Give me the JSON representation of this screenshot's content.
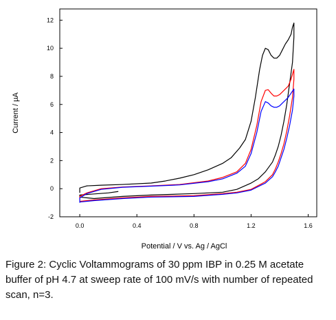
{
  "chart_data": {
    "type": "line",
    "title": "",
    "xlabel": "Potential / V vs. Ag / AgCl",
    "ylabel": "Current / µA",
    "xlim": [
      -0.14,
      1.66
    ],
    "ylim": [
      -2,
      12.8
    ],
    "xticks": [
      0.0,
      0.4,
      0.8,
      1.2,
      1.6
    ],
    "xtick_labels": [
      "0.0",
      "0.4",
      "0.8",
      "1.2",
      "1.6"
    ],
    "yticks": [
      -2,
      0,
      2,
      4,
      6,
      8,
      10,
      12
    ],
    "ytick_labels": [
      "-2",
      "0",
      "2",
      "4",
      "6",
      "8",
      "10",
      "12"
    ],
    "grid": false,
    "legend": "none",
    "series": [
      {
        "color": "#000000",
        "x": [
          0.0,
          0.0,
          0.05,
          0.15,
          0.3,
          0.5,
          0.6,
          0.7,
          0.8,
          0.9,
          1.0,
          1.06,
          1.12,
          1.16,
          1.2,
          1.23,
          1.26,
          1.28,
          1.3,
          1.32,
          1.34,
          1.36,
          1.38,
          1.4,
          1.42,
          1.44,
          1.46,
          1.48,
          1.49,
          1.5,
          1.5,
          1.49,
          1.47,
          1.45,
          1.43,
          1.41,
          1.39,
          1.37,
          1.35,
          1.3,
          1.25,
          1.2,
          1.1,
          1.0,
          0.8,
          0.5,
          0.3,
          0.1,
          0.0,
          0.0,
          0.2,
          0.27
        ],
        "y": [
          -0.3,
          0.05,
          0.2,
          0.25,
          0.3,
          0.4,
          0.55,
          0.75,
          1.0,
          1.35,
          1.8,
          2.2,
          2.9,
          3.5,
          4.8,
          6.5,
          8.5,
          9.5,
          10.0,
          9.9,
          9.5,
          9.3,
          9.3,
          9.5,
          9.9,
          10.3,
          10.6,
          11.0,
          11.5,
          11.8,
          10.8,
          9.0,
          7.5,
          6.0,
          4.8,
          3.8,
          3.0,
          2.4,
          1.9,
          1.2,
          0.7,
          0.4,
          -0.05,
          -0.25,
          -0.35,
          -0.45,
          -0.55,
          -0.7,
          -0.6,
          -0.45,
          -0.3,
          -0.2
        ]
      },
      {
        "color": "#ff0000",
        "x": [
          0.0,
          0.0,
          0.05,
          0.15,
          0.3,
          0.5,
          0.7,
          0.9,
          1.0,
          1.1,
          1.16,
          1.2,
          1.24,
          1.27,
          1.3,
          1.32,
          1.34,
          1.36,
          1.38,
          1.4,
          1.42,
          1.44,
          1.46,
          1.48,
          1.5,
          1.5,
          1.49,
          1.47,
          1.45,
          1.43,
          1.41,
          1.39,
          1.37,
          1.35,
          1.3,
          1.2,
          1.1,
          1.0,
          0.8,
          0.5,
          0.3,
          0.1,
          0.0
        ],
        "y": [
          -0.85,
          -0.55,
          -0.3,
          0.0,
          0.12,
          0.2,
          0.3,
          0.55,
          0.8,
          1.2,
          1.8,
          2.8,
          4.5,
          6.2,
          7.0,
          7.05,
          6.8,
          6.6,
          6.6,
          6.7,
          6.9,
          7.1,
          7.3,
          7.8,
          8.5,
          7.8,
          6.5,
          5.2,
          4.1,
          3.2,
          2.5,
          1.9,
          1.4,
          1.0,
          0.5,
          -0.05,
          -0.25,
          -0.35,
          -0.5,
          -0.55,
          -0.65,
          -0.8,
          -0.9
        ]
      },
      {
        "color": "#0000ff",
        "x": [
          0.0,
          0.0,
          0.05,
          0.15,
          0.3,
          0.5,
          0.7,
          0.9,
          1.0,
          1.1,
          1.16,
          1.2,
          1.24,
          1.27,
          1.3,
          1.32,
          1.34,
          1.36,
          1.38,
          1.4,
          1.42,
          1.44,
          1.46,
          1.48,
          1.5,
          1.5,
          1.49,
          1.47,
          1.45,
          1.43,
          1.41,
          1.39,
          1.37,
          1.35,
          1.3,
          1.2,
          1.1,
          1.0,
          0.8,
          0.5,
          0.3,
          0.1,
          0.0
        ],
        "y": [
          -1.0,
          -0.65,
          -0.35,
          -0.05,
          0.1,
          0.18,
          0.27,
          0.5,
          0.7,
          1.1,
          1.6,
          2.5,
          4.0,
          5.5,
          6.2,
          6.1,
          5.9,
          5.8,
          5.8,
          5.9,
          6.1,
          6.3,
          6.5,
          6.8,
          7.1,
          6.6,
          5.6,
          4.5,
          3.6,
          2.8,
          2.2,
          1.6,
          1.2,
          0.85,
          0.4,
          -0.1,
          -0.3,
          -0.4,
          -0.55,
          -0.6,
          -0.7,
          -0.85,
          -0.95
        ]
      }
    ]
  },
  "caption": "Figure 2: Cyclic Voltammograms of 30 ppm IBP  in 0.25 M acetate buffer of pH 4.7 at sweep  rate of 100 mV/s with number of repeated scan, n=3."
}
